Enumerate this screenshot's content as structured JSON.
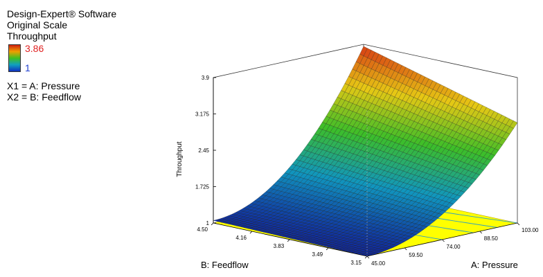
{
  "header": {
    "software": "Design-Expert® Software",
    "scale": "Original Scale",
    "response": "Throughput"
  },
  "colorbar": {
    "max_label": "3.86",
    "min_label": "1",
    "max_color": "#e02020",
    "min_color": "#2040d0"
  },
  "factors": {
    "x1": "X1 = A: Pressure",
    "x2": "X2 = B: Feedflow"
  },
  "chart_data": {
    "type": "surface",
    "zlabel": "Throughput",
    "xlabel": "A: Pressure",
    "ylabel": "B: Feedflow",
    "z_ticks": [
      "1",
      "1.725",
      "2.45",
      "3.175",
      "3.9"
    ],
    "x_ticks": [
      "45.00",
      "59.50",
      "74.00",
      "88.50",
      "103.00"
    ],
    "y_ticks": [
      "3.15",
      "3.49",
      "3.83",
      "4.16",
      "4.50"
    ],
    "xlim": [
      45,
      103
    ],
    "ylim": [
      3.15,
      4.5
    ],
    "zlim": [
      1,
      3.9
    ],
    "corner_values": {
      "pressure_45_feedflow_3.15": 1.0,
      "pressure_45_feedflow_4.50": 1.05,
      "pressure_103_feedflow_3.15": 3.0,
      "pressure_103_feedflow_4.50": 3.86
    },
    "floor_color": "#ffff00",
    "floor_contours": [
      1.5,
      2.0,
      2.5,
      3.0,
      3.5
    ]
  }
}
